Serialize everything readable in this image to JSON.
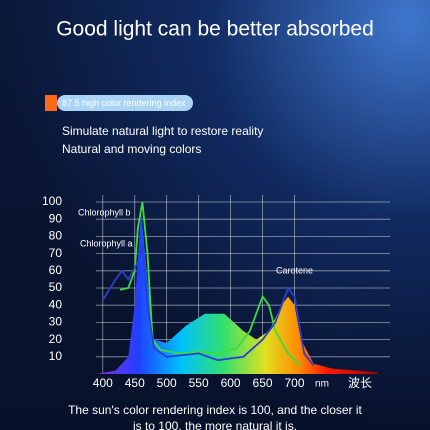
{
  "title": "Good light can be better absorbed",
  "badge": "87.5 high color rendering index",
  "subtitle_lines": [
    "Simulate natural light to restore reality",
    "Natural and moving colors"
  ],
  "caption_lines": [
    "The sun's color rendering index is 100, and the closer it",
    "is to 100, the more natural it is."
  ],
  "chart_data": {
    "type": "line",
    "xlim": [
      380,
      840
    ],
    "ylim": [
      0,
      100
    ],
    "xticks": [
      400,
      450,
      500,
      550,
      600,
      650,
      700
    ],
    "yticks": [
      10,
      20,
      30,
      40,
      50,
      60,
      70,
      80,
      90,
      100
    ],
    "x_unit": "nm",
    "x_label": "波长",
    "grid": true,
    "annotations": [
      "Carotene"
    ],
    "series": [
      {
        "area": true,
        "x": [
          390,
          420,
          440,
          450,
          460,
          470,
          480,
          500,
          530,
          560,
          590,
          620,
          640,
          660,
          680,
          690,
          700,
          710,
          730,
          760,
          800,
          830
        ],
        "values": [
          0,
          2,
          10,
          40,
          95,
          55,
          20,
          18,
          28,
          35,
          35,
          25,
          20,
          25,
          40,
          45,
          40,
          20,
          6,
          3,
          2,
          1
        ]
      },
      {
        "name": "Chlorophyll b",
        "color": "#3ddc3d",
        "x": [
          427,
          440,
          450,
          455,
          462,
          470,
          478,
          490,
          520,
          550,
          580,
          610,
          630,
          650,
          660,
          670,
          690,
          710
        ],
        "values": [
          49,
          50,
          60,
          85,
          100,
          70,
          20,
          14,
          12,
          13,
          12,
          15,
          25,
          45,
          40,
          25,
          12,
          5
        ]
      },
      {
        "name": "Chlorophyll a",
        "color": "#2a3fd0",
        "x": [
          400,
          420,
          430,
          440,
          455,
          462,
          470,
          480,
          500,
          550,
          580,
          620,
          650,
          670,
          690,
          700,
          715,
          730
        ],
        "values": [
          43,
          55,
          60,
          55,
          65,
          75,
          40,
          15,
          10,
          12,
          8,
          10,
          20,
          30,
          50,
          45,
          12,
          5
        ]
      }
    ]
  }
}
